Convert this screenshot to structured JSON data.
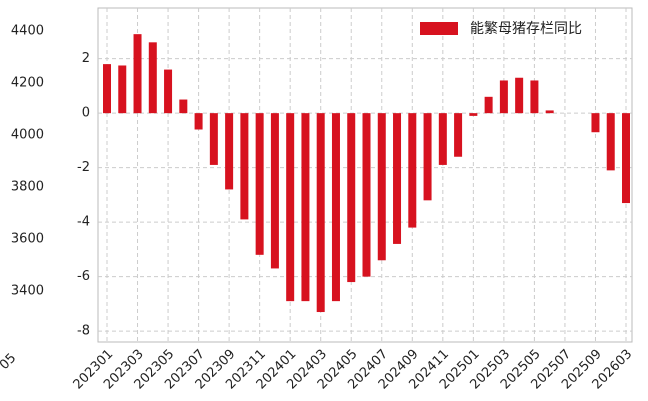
{
  "chart_data": {
    "type": "bar",
    "categories": [
      "202301",
      null,
      "202303",
      null,
      "202305",
      null,
      "202307",
      null,
      "202309",
      null,
      "202311",
      null,
      "202401",
      null,
      "202403",
      null,
      "202405",
      null,
      "202407",
      null,
      "202409",
      null,
      "202411",
      null,
      "202501",
      null,
      "202503",
      null,
      "202505",
      null,
      "202507",
      null,
      "202509",
      null,
      "202603"
    ],
    "series": [
      {
        "name": "能繁母猪存栏同比",
        "color": "#d7121f",
        "values": [
          1.8,
          1.75,
          2.9,
          2.6,
          1.6,
          0.5,
          -0.6,
          -1.9,
          -2.8,
          -3.9,
          -5.2,
          -5.7,
          -6.9,
          -6.9,
          -7.3,
          -6.9,
          -6.2,
          -6.0,
          -5.4,
          -4.8,
          -4.2,
          -3.2,
          -1.9,
          -1.6,
          -0.1,
          0.6,
          1.2,
          1.3,
          1.2,
          0.1,
          null,
          null,
          -0.7,
          -2.1,
          -3.3
        ]
      }
    ],
    "ylim": [
      -8.4,
      3.86
    ],
    "yticks": [
      -8,
      -6,
      -4,
      -2,
      0,
      2
    ],
    "y2lim": [
      3204,
      4488
    ],
    "y2ticks": [
      3400,
      3600,
      3800,
      4000,
      4200,
      4400
    ],
    "grid": true,
    "legend": "upper right",
    "clipped_label": "05"
  }
}
